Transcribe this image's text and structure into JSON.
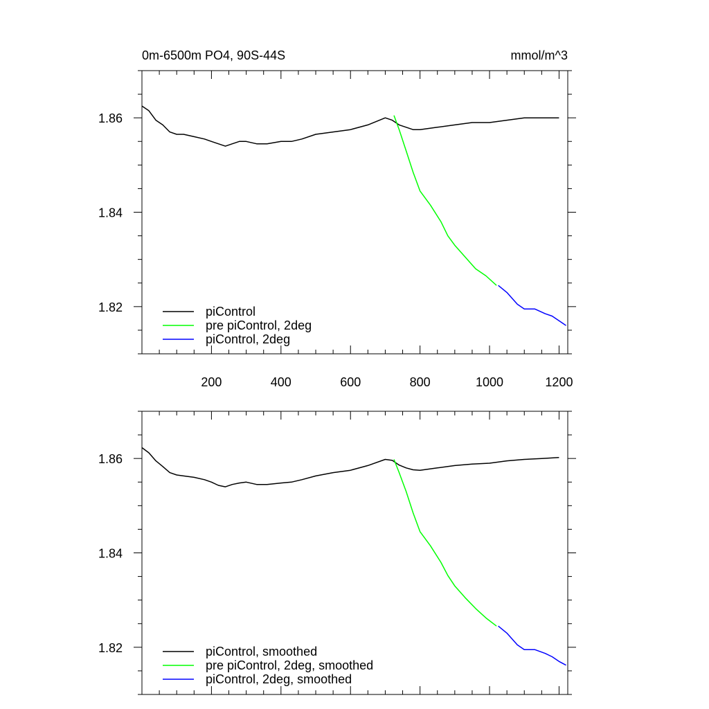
{
  "figure": {
    "title_left": "0m-6500m PO4, 90S-44S",
    "title_right": "mmol/m^3"
  },
  "chart_data": [
    {
      "type": "line",
      "title": "0m-6500m PO4, 90S-44S",
      "units": "mmol/m^3",
      "xlim": [
        0,
        1225
      ],
      "ylim": [
        1.81,
        1.87
      ],
      "x_ticks": [
        200,
        400,
        600,
        800,
        1000,
        1200
      ],
      "x_tick_labels": [
        "200",
        "400",
        "600",
        "800",
        "1000",
        "1200"
      ],
      "y_ticks": [
        1.82,
        1.84,
        1.86
      ],
      "y_tick_labels": [
        "1.82",
        "1.84",
        "1.86"
      ],
      "legend_position": "bottom-left",
      "grid": false,
      "series": [
        {
          "name": "piControl",
          "color": "#000000",
          "x": [
            0,
            20,
            40,
            60,
            80,
            100,
            120,
            150,
            180,
            200,
            220,
            240,
            260,
            280,
            300,
            330,
            360,
            400,
            430,
            460,
            500,
            550,
            600,
            650,
            700,
            720,
            740,
            760,
            780,
            800,
            850,
            900,
            950,
            1000,
            1050,
            1100,
            1150,
            1200
          ],
          "y": [
            1.8625,
            1.8615,
            1.8595,
            1.8585,
            1.857,
            1.8565,
            1.8565,
            1.856,
            1.8555,
            1.855,
            1.8545,
            1.854,
            1.8545,
            1.855,
            1.855,
            1.8545,
            1.8545,
            1.855,
            1.855,
            1.8555,
            1.8565,
            1.857,
            1.8575,
            1.8585,
            1.86,
            1.8595,
            1.8585,
            1.858,
            1.8575,
            1.8575,
            1.858,
            1.8585,
            1.859,
            1.859,
            1.8595,
            1.86,
            1.86,
            1.86
          ]
        },
        {
          "name": "pre piControl, 2deg",
          "color": "#00ff00",
          "x": [
            725,
            740,
            760,
            780,
            800,
            830,
            860,
            880,
            900,
            930,
            960,
            990,
            1020
          ],
          "y": [
            1.8605,
            1.8575,
            1.853,
            1.8485,
            1.8445,
            1.8415,
            1.838,
            1.835,
            1.833,
            1.8305,
            1.828,
            1.8265,
            1.8245
          ]
        },
        {
          "name": "piControl, 2deg",
          "color": "#0000ff",
          "x": [
            1025,
            1050,
            1080,
            1100,
            1130,
            1160,
            1180,
            1200,
            1220
          ],
          "y": [
            1.8245,
            1.823,
            1.8205,
            1.8195,
            1.8195,
            1.8185,
            1.818,
            1.817,
            1.816
          ]
        }
      ]
    },
    {
      "type": "line",
      "xlim": [
        0,
        1225
      ],
      "ylim": [
        1.81,
        1.87
      ],
      "x_ticks": [
        200,
        400,
        600,
        800,
        1000,
        1200
      ],
      "y_ticks": [
        1.82,
        1.84,
        1.86
      ],
      "y_tick_labels": [
        "1.82",
        "1.84",
        "1.86"
      ],
      "legend_position": "bottom-left",
      "grid": false,
      "series": [
        {
          "name": "piControl, smoothed",
          "color": "#000000",
          "x": [
            0,
            20,
            40,
            60,
            80,
            100,
            120,
            150,
            180,
            200,
            220,
            240,
            260,
            280,
            300,
            330,
            360,
            400,
            430,
            460,
            500,
            550,
            600,
            650,
            700,
            720,
            740,
            760,
            780,
            800,
            850,
            900,
            950,
            1000,
            1050,
            1100,
            1150,
            1200
          ],
          "y": [
            1.8623,
            1.8612,
            1.8595,
            1.8583,
            1.857,
            1.8565,
            1.8563,
            1.856,
            1.8555,
            1.855,
            1.8543,
            1.854,
            1.8545,
            1.8548,
            1.855,
            1.8545,
            1.8545,
            1.8548,
            1.855,
            1.8555,
            1.8563,
            1.857,
            1.8575,
            1.8585,
            1.8598,
            1.8596,
            1.8586,
            1.858,
            1.8576,
            1.8575,
            1.858,
            1.8585,
            1.8588,
            1.859,
            1.8595,
            1.8598,
            1.86,
            1.8602
          ]
        },
        {
          "name": "pre piControl, 2deg, smoothed",
          "color": "#00ff00",
          "x": [
            725,
            740,
            760,
            780,
            800,
            830,
            860,
            880,
            900,
            930,
            960,
            990,
            1020
          ],
          "y": [
            1.8598,
            1.857,
            1.853,
            1.8485,
            1.8445,
            1.8415,
            1.838,
            1.8352,
            1.833,
            1.8305,
            1.8282,
            1.8262,
            1.8245
          ]
        },
        {
          "name": "piControl, 2deg, smoothed",
          "color": "#0000ff",
          "x": [
            1025,
            1050,
            1080,
            1100,
            1130,
            1160,
            1180,
            1200,
            1220
          ],
          "y": [
            1.8245,
            1.823,
            1.8205,
            1.8195,
            1.8195,
            1.8187,
            1.818,
            1.817,
            1.8162
          ]
        }
      ]
    }
  ]
}
